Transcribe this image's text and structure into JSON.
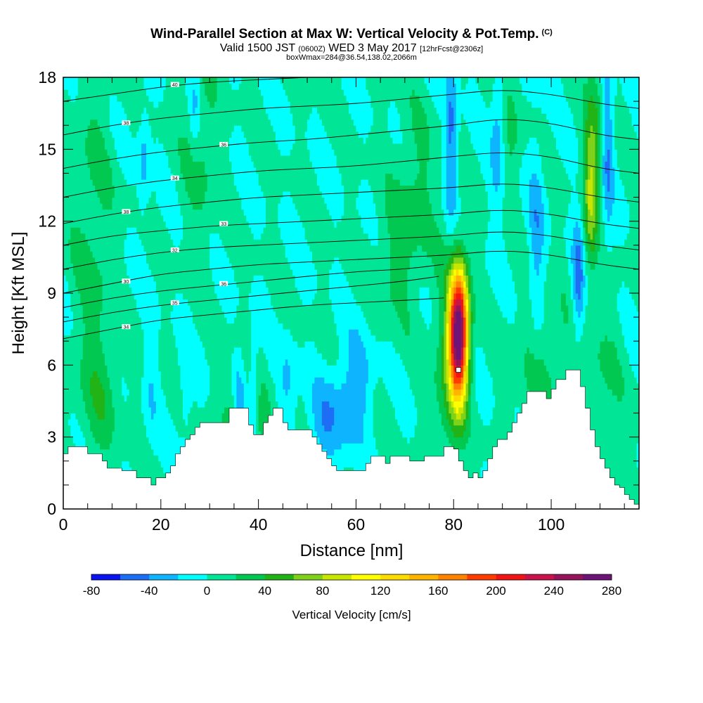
{
  "header": {
    "title": "Wind-Parallel Section at Max W: Vertical Velocity & Pot.Temp.",
    "copyright": "(C)",
    "valid_prefix": "Valid 1500 JST",
    "valid_utc": "(0600Z)",
    "valid_date": "WED 3 May 2017",
    "forecast": "[12hrFcst@2306z]",
    "box_info": "boxWmax=284@36.54,138.02,2066m"
  },
  "chart_data": {
    "type": "heatmap",
    "xlabel": "Distance [nm]",
    "ylabel": "Height [Kft MSL]",
    "xlim": [
      0,
      118
    ],
    "ylim": [
      0,
      18
    ],
    "x_ticks": [
      0,
      20,
      40,
      60,
      80,
      100
    ],
    "y_ticks": [
      0,
      3,
      6,
      9,
      12,
      15,
      18
    ],
    "colorbar": {
      "label": "Vertical Velocity [cm/s]",
      "levels": [
        -80,
        -60,
        -40,
        -20,
        0,
        20,
        40,
        60,
        80,
        100,
        120,
        140,
        160,
        180,
        200,
        220,
        240,
        260,
        280
      ],
      "tick_labels": [
        -80,
        -40,
        0,
        40,
        80,
        120,
        160,
        200,
        240,
        280
      ],
      "colors": [
        "#0a14f0",
        "#1e6ef5",
        "#0fb4ff",
        "#00ffff",
        "#00e696",
        "#00c850",
        "#22b417",
        "#7fd219",
        "#c8e600",
        "#ffff00",
        "#ffdc00",
        "#ffb400",
        "#ff8200",
        "#ff3c00",
        "#f01414",
        "#c8144b",
        "#96145a",
        "#6e1478"
      ]
    },
    "max_marker": {
      "x": 81,
      "y": 5.8
    },
    "terrain": [
      [
        0,
        2.3
      ],
      [
        1,
        2.6
      ],
      [
        4,
        2.6
      ],
      [
        5,
        2.3
      ],
      [
        8,
        2.0
      ],
      [
        9,
        1.7
      ],
      [
        12,
        1.6
      ],
      [
        15,
        1.3
      ],
      [
        17,
        1.3
      ],
      [
        18,
        1.0
      ],
      [
        19,
        1.3
      ],
      [
        21,
        1.5
      ],
      [
        22,
        1.8
      ],
      [
        23,
        2.3
      ],
      [
        24,
        2.6
      ],
      [
        25,
        2.9
      ],
      [
        26,
        3.1
      ],
      [
        27,
        3.4
      ],
      [
        28,
        3.6
      ],
      [
        33,
        3.6
      ],
      [
        34,
        4.2
      ],
      [
        37,
        4.2
      ],
      [
        38,
        3.5
      ],
      [
        39,
        3.1
      ],
      [
        40,
        3.1
      ],
      [
        41,
        3.6
      ],
      [
        42,
        3.9
      ],
      [
        43,
        4.2
      ],
      [
        44,
        4.2
      ],
      [
        45,
        3.6
      ],
      [
        46,
        3.3
      ],
      [
        50,
        3.3
      ],
      [
        51,
        3.0
      ],
      [
        52,
        2.7
      ],
      [
        53,
        2.4
      ],
      [
        54,
        2.1
      ],
      [
        55,
        1.8
      ],
      [
        56,
        1.6
      ],
      [
        60,
        1.6
      ],
      [
        62,
        1.9
      ],
      [
        63,
        2.2
      ],
      [
        65,
        2.2
      ],
      [
        66,
        1.9
      ],
      [
        67,
        2.2
      ],
      [
        70,
        2.2
      ],
      [
        71,
        2.0
      ],
      [
        73,
        2.0
      ],
      [
        74,
        2.2
      ],
      [
        77,
        2.2
      ],
      [
        78,
        2.6
      ],
      [
        80,
        2.5
      ],
      [
        81,
        2.0
      ],
      [
        82,
        1.6
      ],
      [
        83,
        1.3
      ],
      [
        84,
        1.5
      ],
      [
        85,
        1.3
      ],
      [
        86,
        1.6
      ],
      [
        87,
        2.1
      ],
      [
        88,
        2.6
      ],
      [
        89,
        2.9
      ],
      [
        90,
        2.9
      ],
      [
        91,
        3.2
      ],
      [
        92,
        3.6
      ],
      [
        93,
        4.0
      ],
      [
        94,
        4.4
      ],
      [
        95,
        4.9
      ],
      [
        98,
        4.9
      ],
      [
        99,
        4.6
      ],
      [
        100,
        5.0
      ],
      [
        101,
        5.4
      ],
      [
        102,
        5.4
      ],
      [
        103,
        5.8
      ],
      [
        105,
        5.8
      ],
      [
        106,
        5.1
      ],
      [
        107,
        4.2
      ],
      [
        108,
        3.3
      ],
      [
        109,
        2.6
      ],
      [
        110,
        2.1
      ],
      [
        111,
        1.7
      ],
      [
        112,
        1.3
      ],
      [
        113,
        1.0
      ],
      [
        114,
        0.9
      ],
      [
        115,
        0.6
      ],
      [
        116,
        0.4
      ],
      [
        117,
        0.2
      ],
      [
        118,
        0.2
      ]
    ],
    "isentropes": [
      {
        "label": "34",
        "points": [
          [
            0,
            7.1
          ],
          [
            10,
            7.5
          ],
          [
            20,
            7.9
          ],
          [
            30,
            8.1
          ],
          [
            40,
            8.3
          ],
          [
            50,
            8.5
          ],
          [
            60,
            8.6
          ],
          [
            70,
            8.7
          ],
          [
            78,
            8.8
          ]
        ]
      },
      {
        "label": "35",
        "points": [
          [
            0,
            7.8
          ],
          [
            10,
            8.2
          ],
          [
            20,
            8.5
          ],
          [
            30,
            8.7
          ],
          [
            40,
            8.9
          ],
          [
            50,
            9.1
          ],
          [
            60,
            9.3
          ],
          [
            70,
            9.5
          ],
          [
            77,
            9.7
          ]
        ]
      },
      {
        "label": "36",
        "points": [
          [
            0,
            8.4
          ],
          [
            10,
            8.8
          ],
          [
            20,
            9.1
          ],
          [
            30,
            9.3
          ],
          [
            40,
            9.5
          ],
          [
            50,
            9.7
          ],
          [
            60,
            9.9
          ],
          [
            70,
            10.0
          ],
          [
            78,
            10.2
          ]
        ]
      },
      {
        "label": "30",
        "points": [
          [
            0,
            9.0
          ],
          [
            10,
            9.4
          ],
          [
            20,
            9.8
          ],
          [
            30,
            10.0
          ],
          [
            40,
            10.2
          ],
          [
            50,
            10.3
          ],
          [
            60,
            10.4
          ],
          [
            70,
            10.5
          ],
          [
            80,
            10.6
          ],
          [
            90,
            10.8
          ],
          [
            100,
            10.6
          ],
          [
            110,
            10.2
          ],
          [
            118,
            10.0
          ]
        ]
      },
      {
        "label": "32",
        "points": [
          [
            0,
            10.0
          ],
          [
            10,
            10.4
          ],
          [
            20,
            10.7
          ],
          [
            30,
            10.9
          ],
          [
            40,
            11.0
          ],
          [
            50,
            11.1
          ],
          [
            60,
            11.2
          ],
          [
            70,
            11.3
          ],
          [
            80,
            11.4
          ],
          [
            90,
            11.6
          ],
          [
            100,
            11.4
          ],
          [
            110,
            11.0
          ],
          [
            118,
            10.8
          ]
        ]
      },
      {
        "label": "33",
        "points": [
          [
            0,
            11.0
          ],
          [
            10,
            11.4
          ],
          [
            20,
            11.6
          ],
          [
            30,
            11.8
          ],
          [
            40,
            11.9
          ],
          [
            50,
            12.0
          ],
          [
            60,
            12.1
          ],
          [
            70,
            12.2
          ],
          [
            80,
            12.3
          ],
          [
            90,
            12.5
          ],
          [
            100,
            12.3
          ],
          [
            110,
            11.9
          ],
          [
            118,
            11.7
          ]
        ]
      },
      {
        "label": "38",
        "points": [
          [
            0,
            11.9
          ],
          [
            10,
            12.3
          ],
          [
            20,
            12.6
          ],
          [
            30,
            12.8
          ],
          [
            40,
            13.0
          ],
          [
            50,
            13.1
          ],
          [
            60,
            13.2
          ],
          [
            70,
            13.3
          ],
          [
            80,
            13.4
          ],
          [
            90,
            13.6
          ],
          [
            100,
            13.4
          ],
          [
            110,
            13.0
          ],
          [
            118,
            12.8
          ]
        ]
      },
      {
        "label": "34",
        "points": [
          [
            0,
            13.0
          ],
          [
            10,
            13.4
          ],
          [
            20,
            13.7
          ],
          [
            30,
            13.9
          ],
          [
            40,
            14.1
          ],
          [
            50,
            14.2
          ],
          [
            60,
            14.3
          ],
          [
            70,
            14.5
          ],
          [
            80,
            14.7
          ],
          [
            90,
            14.9
          ],
          [
            100,
            14.7
          ],
          [
            110,
            14.2
          ],
          [
            118,
            14.0
          ]
        ]
      },
      {
        "label": "36",
        "points": [
          [
            0,
            14.2
          ],
          [
            10,
            14.6
          ],
          [
            20,
            14.9
          ],
          [
            30,
            15.1
          ],
          [
            40,
            15.3
          ],
          [
            50,
            15.4
          ],
          [
            60,
            15.6
          ],
          [
            70,
            15.8
          ],
          [
            80,
            16.0
          ],
          [
            90,
            16.3
          ],
          [
            100,
            16.1
          ],
          [
            110,
            15.6
          ],
          [
            118,
            15.4
          ]
        ]
      },
      {
        "label": "38",
        "points": [
          [
            0,
            15.6
          ],
          [
            10,
            16.0
          ],
          [
            20,
            16.3
          ],
          [
            30,
            16.5
          ],
          [
            40,
            16.7
          ],
          [
            50,
            16.8
          ],
          [
            60,
            16.9
          ],
          [
            70,
            17.1
          ],
          [
            80,
            17.3
          ],
          [
            90,
            17.5
          ],
          [
            100,
            17.3
          ],
          [
            110,
            16.9
          ],
          [
            118,
            16.7
          ]
        ]
      },
      {
        "label": "40",
        "points": [
          [
            0,
            17.0
          ],
          [
            10,
            17.3
          ],
          [
            20,
            17.6
          ],
          [
            30,
            17.8
          ],
          [
            40,
            17.9
          ],
          [
            50,
            18.0
          ]
        ]
      }
    ]
  }
}
